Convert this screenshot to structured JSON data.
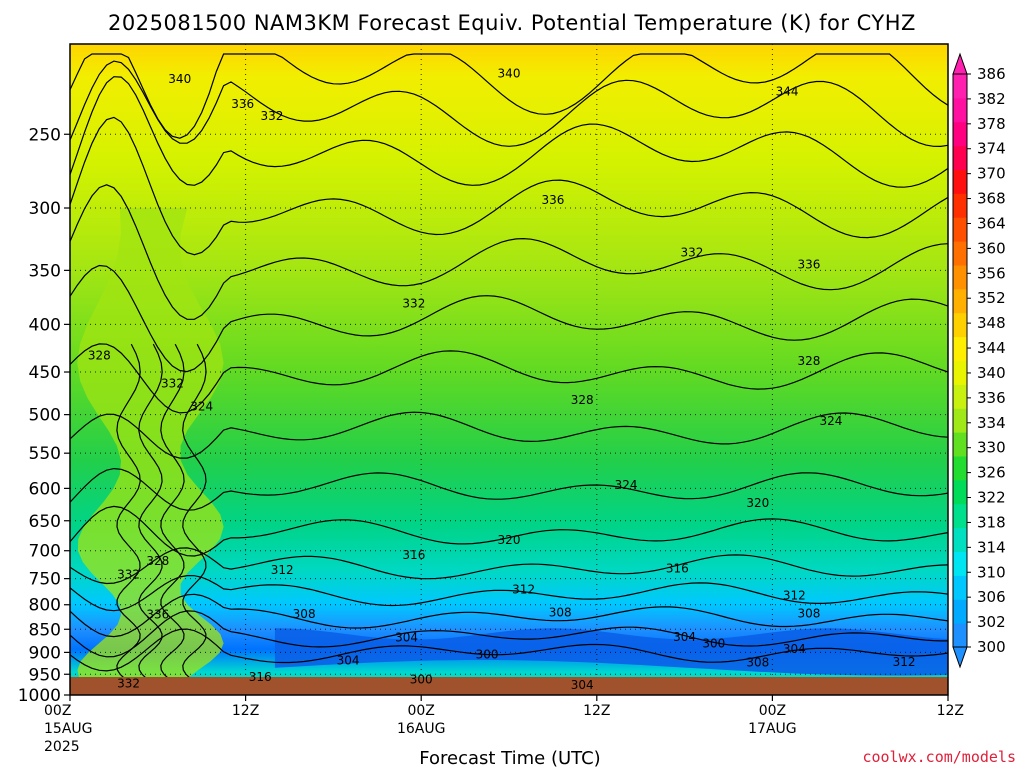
{
  "chart_data": {
    "type": "heatmap",
    "title": "2025081500 NAM3KM Forecast Equiv. Potential Temperature (K) for CYHZ",
    "xlabel": "Forecast Time (UTC)",
    "ylabel": "",
    "yscale": "log-pressure",
    "ylim": [
      1000,
      200
    ],
    "y_ticks": [
      250,
      300,
      350,
      400,
      450,
      500,
      550,
      600,
      650,
      700,
      750,
      800,
      850,
      900,
      950,
      1000
    ],
    "x_ticks": [
      {
        "hour": 0,
        "line1": "00Z",
        "line2": "15AUG",
        "line3": "2025"
      },
      {
        "hour": 12,
        "line1": "12Z",
        "line2": "",
        "line3": ""
      },
      {
        "hour": 24,
        "line1": "00Z",
        "line2": "16AUG",
        "line3": ""
      },
      {
        "hour": 36,
        "line1": "12Z",
        "line2": "",
        "line3": ""
      },
      {
        "hour": 48,
        "line1": "00Z",
        "line2": "17AUG",
        "line3": ""
      },
      {
        "hour": 60,
        "line1": "12Z",
        "line2": "",
        "line3": ""
      }
    ],
    "xlim_hours": [
      0,
      60
    ],
    "grid": true,
    "colorbar": {
      "levels": [
        300,
        302,
        306,
        310,
        314,
        318,
        322,
        326,
        330,
        334,
        336,
        340,
        344,
        348,
        352,
        356,
        360,
        364,
        368,
        370,
        374,
        378,
        382,
        386
      ],
      "labels": [
        "300",
        "302",
        "306",
        "310",
        "314",
        "318",
        "322",
        "326",
        "330",
        "334",
        "336",
        "340",
        "344",
        "348",
        "352",
        "356",
        "360",
        "364",
        "368",
        "370",
        "374",
        "378",
        "382",
        "386"
      ],
      "colors": [
        "#1e90ff",
        "#00aaff",
        "#00c8ff",
        "#00e5f2",
        "#00dfc0",
        "#00e08c",
        "#00dc5a",
        "#22dd30",
        "#60e020",
        "#a0e818",
        "#c8f010",
        "#e8f400",
        "#ffee00",
        "#ffd000",
        "#ffb000",
        "#ff9000",
        "#ff7000",
        "#ff5000",
        "#ff3000",
        "#ff1010",
        "#ff0050",
        "#ff0080",
        "#ff10a0",
        "#ff20b0"
      ]
    },
    "contour_labels": [
      {
        "text": "340",
        "hour": 7.5,
        "p": 218
      },
      {
        "text": "340",
        "hour": 30,
        "p": 215
      },
      {
        "text": "344",
        "hour": 49,
        "p": 225
      },
      {
        "text": "336",
        "hour": 11.8,
        "p": 232
      },
      {
        "text": "332",
        "hour": 13.8,
        "p": 239
      },
      {
        "text": "336",
        "hour": 33,
        "p": 294
      },
      {
        "text": "332",
        "hour": 42.5,
        "p": 335
      },
      {
        "text": "336",
        "hour": 50.5,
        "p": 345
      },
      {
        "text": "332",
        "hour": 23.5,
        "p": 380
      },
      {
        "text": "328",
        "hour": 2,
        "p": 432
      },
      {
        "text": "332",
        "hour": 7,
        "p": 463
      },
      {
        "text": "324",
        "hour": 9,
        "p": 490
      },
      {
        "text": "328",
        "hour": 35,
        "p": 482
      },
      {
        "text": "328",
        "hour": 50.5,
        "p": 438
      },
      {
        "text": "324",
        "hour": 52,
        "p": 508
      },
      {
        "text": "324",
        "hour": 38,
        "p": 595
      },
      {
        "text": "320",
        "hour": 47,
        "p": 622
      },
      {
        "text": "320",
        "hour": 30,
        "p": 682
      },
      {
        "text": "316",
        "hour": 23.5,
        "p": 707
      },
      {
        "text": "316",
        "hour": 41.5,
        "p": 731
      },
      {
        "text": "312",
        "hour": 14.5,
        "p": 734
      },
      {
        "text": "312",
        "hour": 31,
        "p": 770
      },
      {
        "text": "312",
        "hour": 49.5,
        "p": 782
      },
      {
        "text": "308",
        "hour": 16,
        "p": 819
      },
      {
        "text": "308",
        "hour": 33.5,
        "p": 815
      },
      {
        "text": "308",
        "hour": 50.5,
        "p": 818
      },
      {
        "text": "304",
        "hour": 23,
        "p": 868
      },
      {
        "text": "304",
        "hour": 42,
        "p": 866
      },
      {
        "text": "304",
        "hour": 49.5,
        "p": 893
      },
      {
        "text": "300",
        "hour": 28.5,
        "p": 905
      },
      {
        "text": "300",
        "hour": 44,
        "p": 880
      },
      {
        "text": "304",
        "hour": 19,
        "p": 918
      },
      {
        "text": "300",
        "hour": 24,
        "p": 962
      },
      {
        "text": "304",
        "hour": 35,
        "p": 975
      },
      {
        "text": "308",
        "hour": 47,
        "p": 923
      },
      {
        "text": "312",
        "hour": 57,
        "p": 922
      },
      {
        "text": "316",
        "hour": 13,
        "p": 956
      },
      {
        "text": "332",
        "hour": 4,
        "p": 742
      },
      {
        "text": "328",
        "hour": 6,
        "p": 718
      },
      {
        "text": "336",
        "hour": 6,
        "p": 820
      },
      {
        "text": "332",
        "hour": 4,
        "p": 972
      }
    ]
  },
  "credit": "coolwx.com/models"
}
